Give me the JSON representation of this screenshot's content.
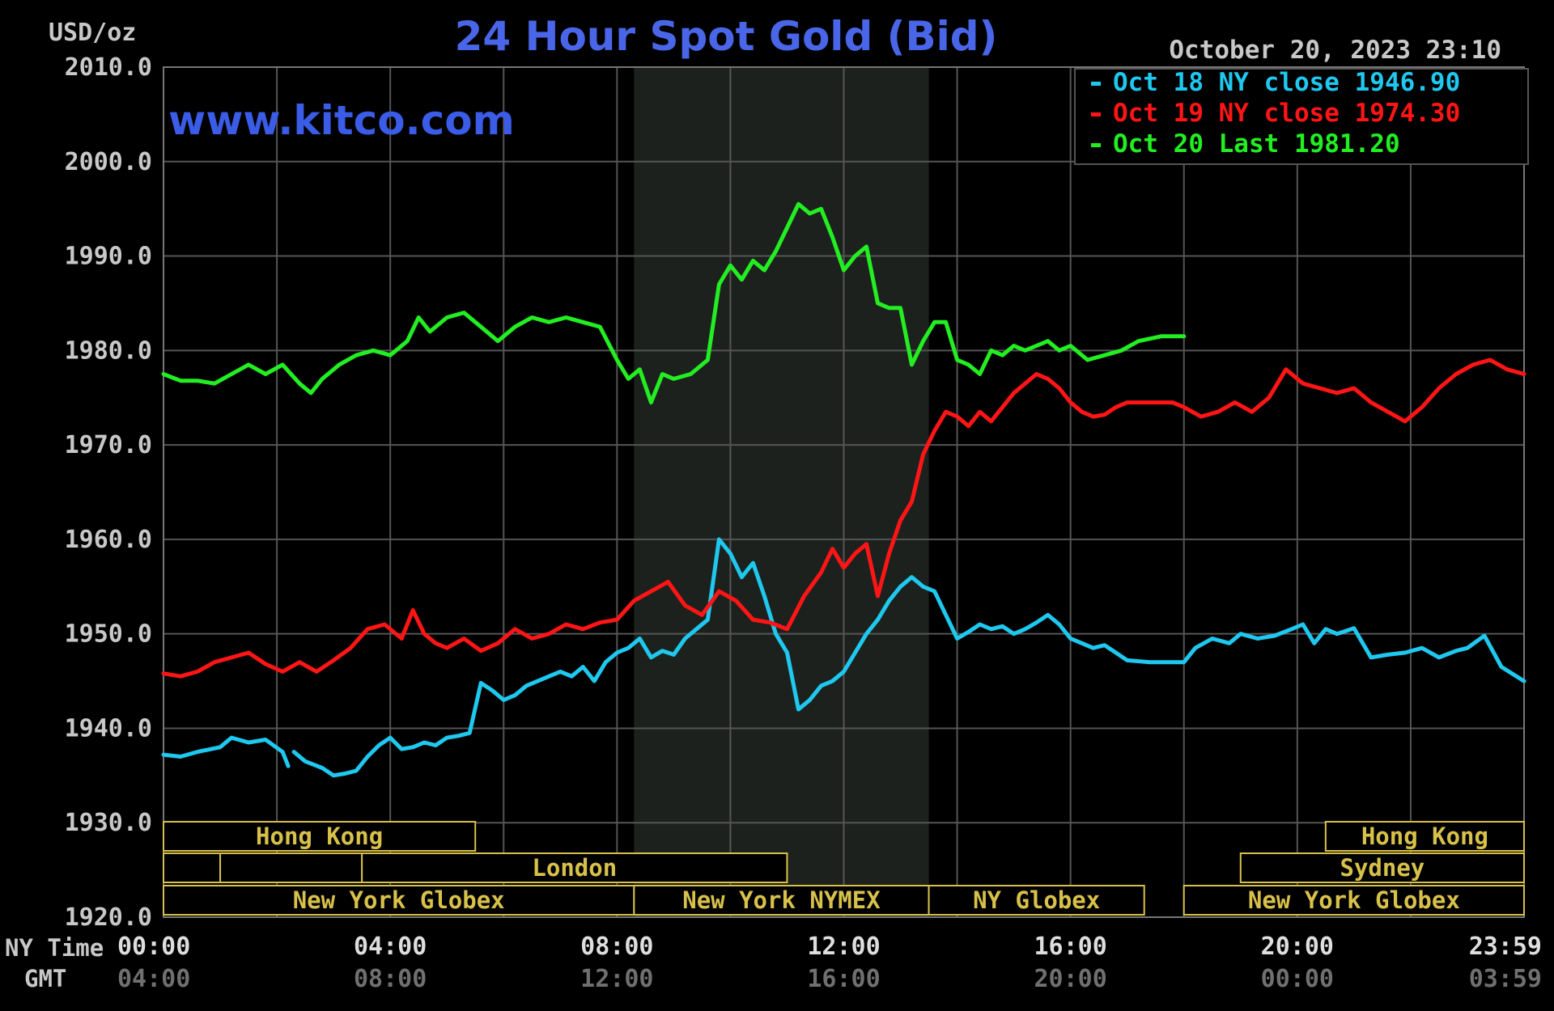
{
  "header": {
    "unit": "USD/oz",
    "title": "24 Hour Spot Gold (Bid)",
    "timestamp": "October 20, 2023 23:10",
    "watermark": "www.kitco.com"
  },
  "colors": {
    "background": "#000000",
    "grid": "#555555",
    "title": "#4a66e8",
    "watermark": "#3a5ce6",
    "text": "#c8c8c8",
    "session": "#d8c14a",
    "nymex_shade": "#1d211d",
    "series_oct18": "#1fc8ef",
    "series_oct19": "#ff1515",
    "series_oct20": "#22ee22"
  },
  "legend": [
    {
      "text": "Oct 18 NY close 1946.90",
      "color": "#1fc8ef"
    },
    {
      "text": "Oct 19 NY close 1974.30",
      "color": "#ff1515"
    },
    {
      "text": "Oct 20 Last 1981.20",
      "color": "#22ee22"
    }
  ],
  "axis": {
    "x_title_ny": "NY Time",
    "x_title_gmt": "GMT",
    "ny_ticks": [
      "00:00",
      "04:00",
      "08:00",
      "12:00",
      "16:00",
      "20:00",
      "23:59"
    ],
    "gmt_ticks": [
      "04:00",
      "08:00",
      "12:00",
      "16:00",
      "20:00",
      "00:00",
      "03:59"
    ]
  },
  "sessions": [
    {
      "label": "Hong Kong",
      "row": 0,
      "start": 0.0,
      "end": 5.5
    },
    {
      "label": "",
      "row": 1,
      "start": 0.0,
      "end": 1.0
    },
    {
      "label": "",
      "row": 1,
      "start": 1.0,
      "end": 3.5
    },
    {
      "label": "London",
      "row": 1,
      "start": 3.5,
      "end": 11.0
    },
    {
      "label": "New York Globex",
      "row": 2,
      "start": 0.0,
      "end": 8.3
    },
    {
      "label": "New York NYMEX",
      "row": 2,
      "start": 8.3,
      "end": 13.5
    },
    {
      "label": "NY Globex",
      "row": 2,
      "start": 13.5,
      "end": 17.3
    },
    {
      "label": "Hong Kong",
      "row": 0,
      "start": 20.5,
      "end": 24.0
    },
    {
      "label": "Sydney",
      "row": 1,
      "start": 19.0,
      "end": 24.0
    },
    {
      "label": "New York Globex",
      "row": 2,
      "start": 18.0,
      "end": 24.0
    }
  ],
  "chart_data": {
    "type": "line",
    "title": "24 Hour Spot Gold (Bid)",
    "ylabel": "USD/oz",
    "xlabel": "NY Time",
    "xlim": [
      0,
      24
    ],
    "ylim": [
      1920,
      2010
    ],
    "y_ticks": [
      1920,
      1930,
      1940,
      1950,
      1960,
      1970,
      1980,
      1990,
      2000,
      2010
    ],
    "x_ticks": [
      0,
      4,
      8,
      12,
      16,
      20,
      24
    ],
    "grid": true,
    "legend_position": "top-right",
    "shaded_region": [
      8.3,
      13.5
    ],
    "series": [
      {
        "name": "Oct 18 NY close 1946.90",
        "color": "#1fc8ef",
        "x": [
          0,
          0.3,
          0.6,
          1,
          1.2,
          1.5,
          1.8,
          2.1,
          2.2,
          2.3,
          2.5,
          2.8,
          3.0,
          3.2,
          3.4,
          3.6,
          3.8,
          4.0,
          4.2,
          4.4,
          4.6,
          4.8,
          5.0,
          5.2,
          5.4,
          5.6,
          5.8,
          6.0,
          6.2,
          6.4,
          6.6,
          6.8,
          7.0,
          7.2,
          7.4,
          7.6,
          7.8,
          8.0,
          8.2,
          8.4,
          8.6,
          8.8,
          9.0,
          9.2,
          9.4,
          9.6,
          9.8,
          10.0,
          10.2,
          10.4,
          10.6,
          10.8,
          11.0,
          11.2,
          11.4,
          11.6,
          11.8,
          12.0,
          12.2,
          12.4,
          12.6,
          12.8,
          13.0,
          13.2,
          13.4,
          13.6,
          13.8,
          14.0,
          14.2,
          14.4,
          14.6,
          14.8,
          15.0,
          15.2,
          15.4,
          15.6,
          15.8,
          16.0,
          16.2,
          16.4,
          16.6,
          16.8,
          17.0,
          17.4,
          17.8,
          18.0,
          18.2,
          18.5,
          18.8,
          19.0,
          19.3,
          19.6,
          19.9,
          20.1,
          20.3,
          20.5,
          20.7,
          21.0,
          21.3,
          21.6,
          21.9,
          22.2,
          22.5,
          22.8,
          23.0,
          23.3,
          23.6,
          24.0
        ],
        "y": [
          1937.2,
          1937.0,
          1937.5,
          1938.0,
          1939.0,
          1938.5,
          1938.8,
          1937.5,
          1936.0,
          1937.5,
          1936.5,
          1935.8,
          1935.0,
          1935.2,
          1935.5,
          1937.0,
          1938.2,
          1939.0,
          1937.8,
          1938.0,
          1938.5,
          1938.2,
          1939.0,
          1939.2,
          1939.5,
          1944.8,
          1944.0,
          1943.0,
          1943.5,
          1944.5,
          1945.0,
          1945.5,
          1946.0,
          1945.5,
          1946.5,
          1945.0,
          1947.0,
          1948.0,
          1948.5,
          1949.5,
          1947.5,
          1948.2,
          1947.8,
          1949.5,
          1950.5,
          1951.5,
          1960.0,
          1958.5,
          1956.0,
          1957.5,
          1954.0,
          1950.0,
          1948.0,
          1942.0,
          1943.0,
          1944.5,
          1945.0,
          1946.0,
          1948.0,
          1950.0,
          1951.5,
          1953.5,
          1955.0,
          1956.0,
          1955.0,
          1954.5,
          1952.0,
          1949.5,
          1950.2,
          1951.0,
          1950.5,
          1950.8,
          1950.0,
          1950.5,
          1951.2,
          1952.0,
          1951.0,
          1949.5,
          1949.0,
          1948.5,
          1948.8,
          1948.0,
          1947.2,
          1947.0,
          1947.0,
          1947.0,
          1948.5,
          1949.5,
          1949.0,
          1950.0,
          1949.5,
          1949.8,
          1950.5,
          1951.0,
          1949.0,
          1950.5,
          1950.0,
          1950.6,
          1947.5,
          1947.8,
          1948.0,
          1948.5,
          1947.5,
          1948.2,
          1948.5,
          1949.8,
          1946.5,
          1945.0
        ],
        "segments_gap_after_x": [
          2.2
        ]
      },
      {
        "name": "Oct 19 NY close 1974.30",
        "color": "#ff1515",
        "x": [
          0,
          0.3,
          0.6,
          0.9,
          1.2,
          1.5,
          1.8,
          2.1,
          2.4,
          2.7,
          3.0,
          3.3,
          3.6,
          3.9,
          4.2,
          4.4,
          4.6,
          4.8,
          5.0,
          5.3,
          5.6,
          5.9,
          6.2,
          6.5,
          6.8,
          7.1,
          7.4,
          7.7,
          8.0,
          8.3,
          8.6,
          8.9,
          9.2,
          9.5,
          9.8,
          10.1,
          10.4,
          10.7,
          11.0,
          11.3,
          11.6,
          11.8,
          12.0,
          12.2,
          12.4,
          12.6,
          12.8,
          13.0,
          13.2,
          13.4,
          13.6,
          13.8,
          14.0,
          14.2,
          14.4,
          14.6,
          14.8,
          15.0,
          15.2,
          15.4,
          15.6,
          15.8,
          16.0,
          16.2,
          16.4,
          16.6,
          16.8,
          17.0,
          17.4,
          17.8,
          18.0,
          18.3,
          18.6,
          18.9,
          19.2,
          19.5,
          19.8,
          20.1,
          20.4,
          20.7,
          21.0,
          21.3,
          21.6,
          21.9,
          22.2,
          22.5,
          22.8,
          23.1,
          23.4,
          23.7,
          24.0
        ],
        "y": [
          1945.8,
          1945.5,
          1946.0,
          1947.0,
          1947.5,
          1948.0,
          1946.8,
          1946.0,
          1947.0,
          1946.0,
          1947.2,
          1948.5,
          1950.5,
          1951.0,
          1949.5,
          1952.5,
          1950.0,
          1949.0,
          1948.5,
          1949.5,
          1948.2,
          1949.0,
          1950.5,
          1949.5,
          1950.0,
          1951.0,
          1950.5,
          1951.2,
          1951.5,
          1953.5,
          1954.5,
          1955.5,
          1953.0,
          1952.0,
          1954.5,
          1953.5,
          1951.5,
          1951.2,
          1950.5,
          1954.0,
          1956.5,
          1959.0,
          1957.0,
          1958.5,
          1959.5,
          1954.0,
          1958.5,
          1962.0,
          1964.0,
          1969.0,
          1971.5,
          1973.5,
          1973.0,
          1972.0,
          1973.5,
          1972.5,
          1974.0,
          1975.5,
          1976.5,
          1977.5,
          1977.0,
          1976.0,
          1974.5,
          1973.5,
          1973.0,
          1973.2,
          1974.0,
          1974.5,
          1974.5,
          1974.5,
          1974.0,
          1973.0,
          1973.5,
          1974.5,
          1973.5,
          1975.0,
          1978.0,
          1976.5,
          1976.0,
          1975.5,
          1976.0,
          1974.5,
          1973.5,
          1972.5,
          1974.0,
          1976.0,
          1977.5,
          1978.5,
          1979.0,
          1978.0,
          1977.5
        ]
      },
      {
        "name": "Oct 20 Last 1981.20",
        "color": "#22ee22",
        "x": [
          0,
          0.3,
          0.6,
          0.9,
          1.2,
          1.5,
          1.8,
          2.1,
          2.4,
          2.6,
          2.8,
          3.1,
          3.4,
          3.7,
          4.0,
          4.3,
          4.5,
          4.7,
          5.0,
          5.3,
          5.6,
          5.9,
          6.2,
          6.5,
          6.8,
          7.1,
          7.4,
          7.7,
          8.0,
          8.2,
          8.4,
          8.6,
          8.8,
          9.0,
          9.3,
          9.6,
          9.8,
          10.0,
          10.2,
          10.4,
          10.6,
          10.8,
          11.0,
          11.2,
          11.4,
          11.6,
          11.8,
          12.0,
          12.2,
          12.4,
          12.6,
          12.8,
          13.0,
          13.2,
          13.4,
          13.6,
          13.8,
          14.0,
          14.2,
          14.4,
          14.6,
          14.8,
          15.0,
          15.2,
          15.4,
          15.6,
          15.8,
          16.0,
          16.3,
          16.6,
          16.9,
          17.2,
          17.6,
          18.0
        ],
        "y": [
          1977.5,
          1976.8,
          1976.8,
          1976.5,
          1977.5,
          1978.5,
          1977.5,
          1978.5,
          1976.5,
          1975.5,
          1977.0,
          1978.5,
          1979.5,
          1980.0,
          1979.5,
          1981.0,
          1983.5,
          1982.0,
          1983.5,
          1984.0,
          1982.5,
          1981.0,
          1982.5,
          1983.5,
          1983.0,
          1983.5,
          1983.0,
          1982.5,
          1979.0,
          1977.0,
          1978.0,
          1974.5,
          1977.5,
          1977.0,
          1977.5,
          1979.0,
          1987.0,
          1989.0,
          1987.5,
          1989.5,
          1988.5,
          1990.5,
          1993.0,
          1995.5,
          1994.5,
          1995.0,
          1992.0,
          1988.5,
          1990.0,
          1991.0,
          1985.0,
          1984.5,
          1984.5,
          1978.5,
          1981.0,
          1983.0,
          1983.0,
          1979.0,
          1978.5,
          1977.5,
          1980.0,
          1979.5,
          1980.5,
          1980.0,
          1980.5,
          1981.0,
          1980.0,
          1980.5,
          1979.0,
          1979.5,
          1980.0,
          1981.0,
          1981.5,
          1981.5
        ]
      }
    ]
  }
}
